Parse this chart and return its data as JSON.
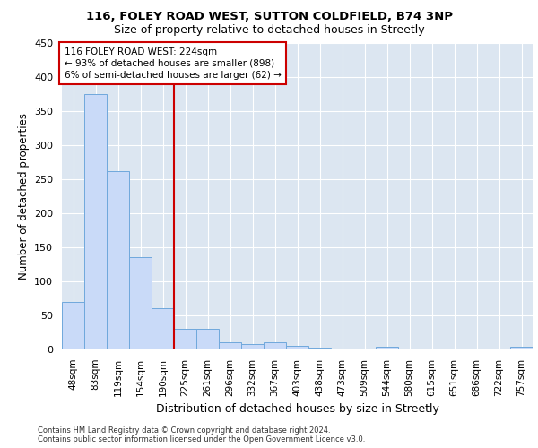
{
  "title1": "116, FOLEY ROAD WEST, SUTTON COLDFIELD, B74 3NP",
  "title2": "Size of property relative to detached houses in Streetly",
  "xlabel": "Distribution of detached houses by size in Streetly",
  "ylabel": "Number of detached properties",
  "footer1": "Contains HM Land Registry data © Crown copyright and database right 2024.",
  "footer2": "Contains public sector information licensed under the Open Government Licence v3.0.",
  "bar_labels": [
    "48sqm",
    "83sqm",
    "119sqm",
    "154sqm",
    "190sqm",
    "225sqm",
    "261sqm",
    "296sqm",
    "332sqm",
    "367sqm",
    "403sqm",
    "438sqm",
    "473sqm",
    "509sqm",
    "544sqm",
    "580sqm",
    "615sqm",
    "651sqm",
    "686sqm",
    "722sqm",
    "757sqm"
  ],
  "bar_values": [
    70,
    375,
    262,
    135,
    60,
    30,
    30,
    10,
    8,
    10,
    5,
    3,
    0,
    0,
    4,
    0,
    0,
    0,
    0,
    0,
    4
  ],
  "bar_color": "#c9daf8",
  "bar_edge_color": "#6fa8dc",
  "background_color": "#dce6f1",
  "grid_color": "#ffffff",
  "vline_color": "#cc0000",
  "annotation_text": "116 FOLEY ROAD WEST: 224sqm\n← 93% of detached houses are smaller (898)\n6% of semi-detached houses are larger (62) →",
  "annotation_box_color": "#cc0000",
  "ylim": [
    0,
    450
  ],
  "yticks": [
    0,
    50,
    100,
    150,
    200,
    250,
    300,
    350,
    400,
    450
  ]
}
